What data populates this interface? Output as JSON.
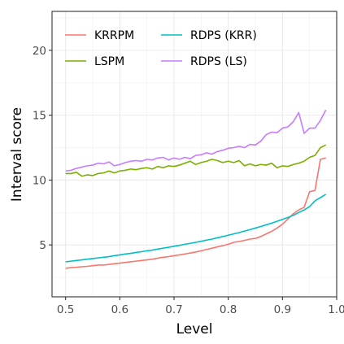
{
  "chart_data": {
    "type": "line",
    "xlabel": "Level",
    "ylabel": "Interval score",
    "xlim": [
      0.475,
      1.0
    ],
    "ylim": [
      1.0,
      23.0
    ],
    "x_ticks": [
      0.5,
      0.6,
      0.7,
      0.8,
      0.9,
      1.0
    ],
    "x_tick_labels": [
      "0.5",
      "0.6",
      "0.7",
      "0.8",
      "0.9",
      "1.0"
    ],
    "y_ticks": [
      5,
      10,
      15,
      20
    ],
    "y_tick_labels": [
      "5",
      "10",
      "15",
      "20"
    ],
    "grid": true,
    "legend_position": "top-left inside",
    "series": [
      {
        "name": "KRRPM",
        "color": "#F8766D",
        "points": [
          [
            0.5,
            3.2
          ],
          [
            0.51,
            3.25
          ],
          [
            0.52,
            3.28
          ],
          [
            0.53,
            3.32
          ],
          [
            0.54,
            3.35
          ],
          [
            0.55,
            3.4
          ],
          [
            0.56,
            3.45
          ],
          [
            0.57,
            3.45
          ],
          [
            0.58,
            3.5
          ],
          [
            0.59,
            3.55
          ],
          [
            0.6,
            3.6
          ],
          [
            0.61,
            3.65
          ],
          [
            0.62,
            3.7
          ],
          [
            0.63,
            3.75
          ],
          [
            0.64,
            3.8
          ],
          [
            0.65,
            3.85
          ],
          [
            0.66,
            3.9
          ],
          [
            0.67,
            3.98
          ],
          [
            0.68,
            4.05
          ],
          [
            0.69,
            4.1
          ],
          [
            0.7,
            4.17
          ],
          [
            0.71,
            4.23
          ],
          [
            0.72,
            4.3
          ],
          [
            0.73,
            4.38
          ],
          [
            0.74,
            4.45
          ],
          [
            0.75,
            4.55
          ],
          [
            0.76,
            4.65
          ],
          [
            0.77,
            4.75
          ],
          [
            0.78,
            4.85
          ],
          [
            0.79,
            4.95
          ],
          [
            0.8,
            5.05
          ],
          [
            0.81,
            5.2
          ],
          [
            0.82,
            5.27
          ],
          [
            0.83,
            5.35
          ],
          [
            0.84,
            5.45
          ],
          [
            0.85,
            5.5
          ],
          [
            0.86,
            5.65
          ],
          [
            0.87,
            5.85
          ],
          [
            0.88,
            6.05
          ],
          [
            0.89,
            6.3
          ],
          [
            0.9,
            6.6
          ],
          [
            0.91,
            7.0
          ],
          [
            0.92,
            7.4
          ],
          [
            0.93,
            7.7
          ],
          [
            0.94,
            7.9
          ],
          [
            0.95,
            9.1
          ],
          [
            0.96,
            9.2
          ],
          [
            0.97,
            11.6
          ],
          [
            0.98,
            11.7
          ]
        ]
      },
      {
        "name": "LSPM",
        "color": "#7CAE00",
        "points": [
          [
            0.5,
            10.5
          ],
          [
            0.51,
            10.5
          ],
          [
            0.52,
            10.6
          ],
          [
            0.53,
            10.3
          ],
          [
            0.54,
            10.4
          ],
          [
            0.55,
            10.35
          ],
          [
            0.56,
            10.5
          ],
          [
            0.57,
            10.55
          ],
          [
            0.58,
            10.7
          ],
          [
            0.59,
            10.55
          ],
          [
            0.6,
            10.7
          ],
          [
            0.61,
            10.75
          ],
          [
            0.62,
            10.85
          ],
          [
            0.63,
            10.8
          ],
          [
            0.64,
            10.9
          ],
          [
            0.65,
            10.95
          ],
          [
            0.66,
            10.85
          ],
          [
            0.67,
            11.05
          ],
          [
            0.68,
            10.95
          ],
          [
            0.69,
            11.1
          ],
          [
            0.7,
            11.05
          ],
          [
            0.71,
            11.15
          ],
          [
            0.72,
            11.3
          ],
          [
            0.73,
            11.45
          ],
          [
            0.74,
            11.2
          ],
          [
            0.75,
            11.35
          ],
          [
            0.76,
            11.45
          ],
          [
            0.77,
            11.6
          ],
          [
            0.78,
            11.5
          ],
          [
            0.79,
            11.35
          ],
          [
            0.8,
            11.45
          ],
          [
            0.81,
            11.35
          ],
          [
            0.82,
            11.5
          ],
          [
            0.83,
            11.1
          ],
          [
            0.84,
            11.25
          ],
          [
            0.85,
            11.1
          ],
          [
            0.86,
            11.2
          ],
          [
            0.87,
            11.15
          ],
          [
            0.88,
            11.3
          ],
          [
            0.89,
            10.95
          ],
          [
            0.9,
            11.1
          ],
          [
            0.91,
            11.05
          ],
          [
            0.92,
            11.2
          ],
          [
            0.93,
            11.3
          ],
          [
            0.94,
            11.45
          ],
          [
            0.95,
            11.75
          ],
          [
            0.96,
            11.9
          ],
          [
            0.97,
            12.5
          ],
          [
            0.98,
            12.7
          ]
        ]
      },
      {
        "name": "RDPS (KRR)",
        "color": "#00BFC4",
        "points": [
          [
            0.5,
            3.7
          ],
          [
            0.51,
            3.75
          ],
          [
            0.52,
            3.8
          ],
          [
            0.53,
            3.85
          ],
          [
            0.54,
            3.9
          ],
          [
            0.55,
            3.95
          ],
          [
            0.56,
            4.0
          ],
          [
            0.57,
            4.05
          ],
          [
            0.58,
            4.1
          ],
          [
            0.59,
            4.17
          ],
          [
            0.6,
            4.23
          ],
          [
            0.61,
            4.3
          ],
          [
            0.62,
            4.35
          ],
          [
            0.63,
            4.42
          ],
          [
            0.64,
            4.48
          ],
          [
            0.65,
            4.55
          ],
          [
            0.66,
            4.6
          ],
          [
            0.67,
            4.68
          ],
          [
            0.68,
            4.75
          ],
          [
            0.69,
            4.82
          ],
          [
            0.7,
            4.9
          ],
          [
            0.71,
            4.97
          ],
          [
            0.72,
            5.05
          ],
          [
            0.73,
            5.12
          ],
          [
            0.74,
            5.2
          ],
          [
            0.75,
            5.28
          ],
          [
            0.76,
            5.37
          ],
          [
            0.77,
            5.45
          ],
          [
            0.78,
            5.55
          ],
          [
            0.79,
            5.65
          ],
          [
            0.8,
            5.75
          ],
          [
            0.81,
            5.85
          ],
          [
            0.82,
            5.95
          ],
          [
            0.83,
            6.07
          ],
          [
            0.84,
            6.18
          ],
          [
            0.85,
            6.3
          ],
          [
            0.86,
            6.42
          ],
          [
            0.87,
            6.55
          ],
          [
            0.88,
            6.68
          ],
          [
            0.89,
            6.82
          ],
          [
            0.9,
            6.97
          ],
          [
            0.91,
            7.12
          ],
          [
            0.92,
            7.28
          ],
          [
            0.93,
            7.5
          ],
          [
            0.94,
            7.7
          ],
          [
            0.95,
            7.95
          ],
          [
            0.96,
            8.4
          ],
          [
            0.97,
            8.65
          ],
          [
            0.98,
            8.9
          ]
        ]
      },
      {
        "name": "RDPS (LS)",
        "color": "#C77CFF",
        "points": [
          [
            0.5,
            10.7
          ],
          [
            0.51,
            10.75
          ],
          [
            0.52,
            10.9
          ],
          [
            0.53,
            11.0
          ],
          [
            0.54,
            11.1
          ],
          [
            0.55,
            11.15
          ],
          [
            0.56,
            11.3
          ],
          [
            0.57,
            11.25
          ],
          [
            0.58,
            11.4
          ],
          [
            0.59,
            11.1
          ],
          [
            0.6,
            11.2
          ],
          [
            0.61,
            11.35
          ],
          [
            0.62,
            11.45
          ],
          [
            0.63,
            11.5
          ],
          [
            0.64,
            11.45
          ],
          [
            0.65,
            11.6
          ],
          [
            0.66,
            11.55
          ],
          [
            0.67,
            11.7
          ],
          [
            0.68,
            11.75
          ],
          [
            0.69,
            11.55
          ],
          [
            0.7,
            11.7
          ],
          [
            0.71,
            11.6
          ],
          [
            0.72,
            11.75
          ],
          [
            0.73,
            11.65
          ],
          [
            0.74,
            11.9
          ],
          [
            0.75,
            11.95
          ],
          [
            0.76,
            12.1
          ],
          [
            0.77,
            12.0
          ],
          [
            0.78,
            12.2
          ],
          [
            0.79,
            12.3
          ],
          [
            0.8,
            12.45
          ],
          [
            0.81,
            12.5
          ],
          [
            0.82,
            12.6
          ],
          [
            0.83,
            12.5
          ],
          [
            0.84,
            12.75
          ],
          [
            0.85,
            12.7
          ],
          [
            0.86,
            13.0
          ],
          [
            0.87,
            13.5
          ],
          [
            0.88,
            13.7
          ],
          [
            0.89,
            13.65
          ],
          [
            0.9,
            14.0
          ],
          [
            0.91,
            14.1
          ],
          [
            0.92,
            14.5
          ],
          [
            0.93,
            15.2
          ],
          [
            0.94,
            13.6
          ],
          [
            0.95,
            14.0
          ],
          [
            0.96,
            14.0
          ],
          [
            0.97,
            14.6
          ],
          [
            0.98,
            15.4
          ]
        ]
      }
    ]
  }
}
